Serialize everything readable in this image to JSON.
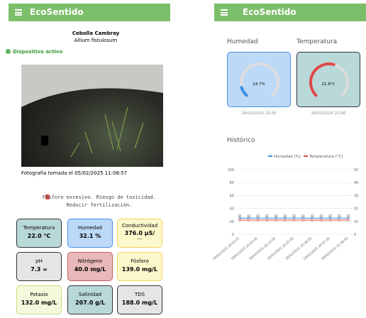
{
  "left_screen": {
    "header": {
      "title": "EcoSentido"
    },
    "plant": {
      "name": "Cebolla Cambray",
      "scientific_name": "Allium fistulosum"
    },
    "status": "Dispositivo activo",
    "photo_caption": "Fotografía tomada el 05/02/2025 11:08:57",
    "alert": {
      "lines": [
        "Fósforo excesivo. Riesgo de toxicidad.",
        "Reducir fertilización."
      ]
    },
    "cards": [
      {
        "label": "Temperatura",
        "value": "22.0 °C"
      },
      {
        "label": "Humedad",
        "value": "32.1 %"
      },
      {
        "label": "Conductividad",
        "value": "376.0 µS/",
        "extra": "---"
      },
      {
        "label": "pH",
        "value": "7.3 ="
      },
      {
        "label": "Nitrógeno",
        "value": "40.0 mg/L"
      },
      {
        "label": "Fósforo",
        "value": "139.0 mg/L"
      },
      {
        "label": "Potasio",
        "value": "132.0 mg/L"
      },
      {
        "label": "Salinidad",
        "value": "207.0 g/L"
      },
      {
        "label": "TDS",
        "value": "188.0 mg/L"
      }
    ]
  },
  "right_screen": {
    "header": {
      "title": "EcoSentido"
    },
    "gauges": [
      {
        "label": "Humedad",
        "value": "24.7%",
        "date": "18/02/2025 22:00"
      },
      {
        "label": "Temperatura",
        "value": "21.6°C",
        "date": "18/02/2025 22:00"
      }
    ]
  },
  "chart_data": {
    "type": "line",
    "title": "Histórico",
    "categories": [
      "18/02/2025 19:53:01",
      null,
      "18/02/2025 20:03:05",
      null,
      "18/02/2025 20:13:05",
      null,
      "18/02/2025 20:25:05",
      null,
      "18/02/2025 20:36:05",
      null,
      "18/02/2025 20:47:05",
      null,
      "18/02/2025 21:58:05"
    ],
    "series": [
      {
        "name": "Humedad (%)",
        "color": "#3d8ee6",
        "values": [
          25,
          25,
          25,
          25,
          25,
          25,
          25,
          25,
          25,
          25,
          25,
          25,
          25
        ]
      },
      {
        "name": "Temperatura (°C)",
        "color": "#e04848",
        "values": [
          22,
          22,
          22,
          22,
          22,
          22,
          22,
          22,
          22,
          22,
          22,
          22,
          22
        ]
      }
    ],
    "ylim": [
      0,
      100
    ],
    "yticks": [
      0,
      20,
      40,
      60,
      80,
      100
    ],
    "y2lim": [
      0,
      50
    ],
    "y2ticks": [
      0,
      10,
      20,
      30,
      40,
      50
    ],
    "grid": true,
    "legend": "top"
  }
}
